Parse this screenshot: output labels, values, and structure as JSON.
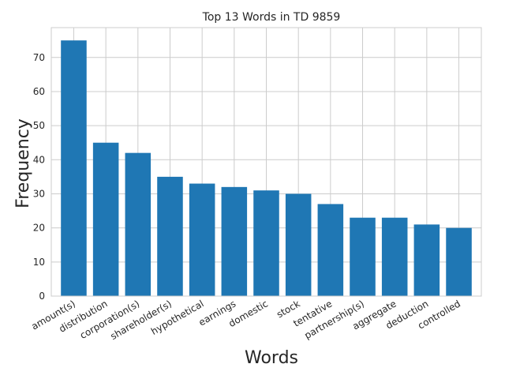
{
  "chart_data": {
    "type": "bar",
    "title": "Top 13 Words in TD 9859",
    "xlabel": "Words",
    "ylabel": "Frequency",
    "categories": [
      "amount(s)",
      "distribution",
      "corporation(s)",
      "shareholder(s)",
      "hypothetical",
      "earnings",
      "domestic",
      "stock",
      "tentative",
      "partnership(s)",
      "aggregate",
      "deduction",
      "controlled"
    ],
    "values": [
      75,
      45,
      42,
      35,
      33,
      32,
      31,
      30,
      27,
      23,
      23,
      21,
      20
    ],
    "ylim": [
      0,
      78.75
    ],
    "yticks": [
      0,
      10,
      20,
      30,
      40,
      50,
      60,
      70
    ],
    "grid": true,
    "bar_color": "#1f77b4",
    "grid_color": "#cccccc",
    "spine_color": "#cccccc"
  }
}
